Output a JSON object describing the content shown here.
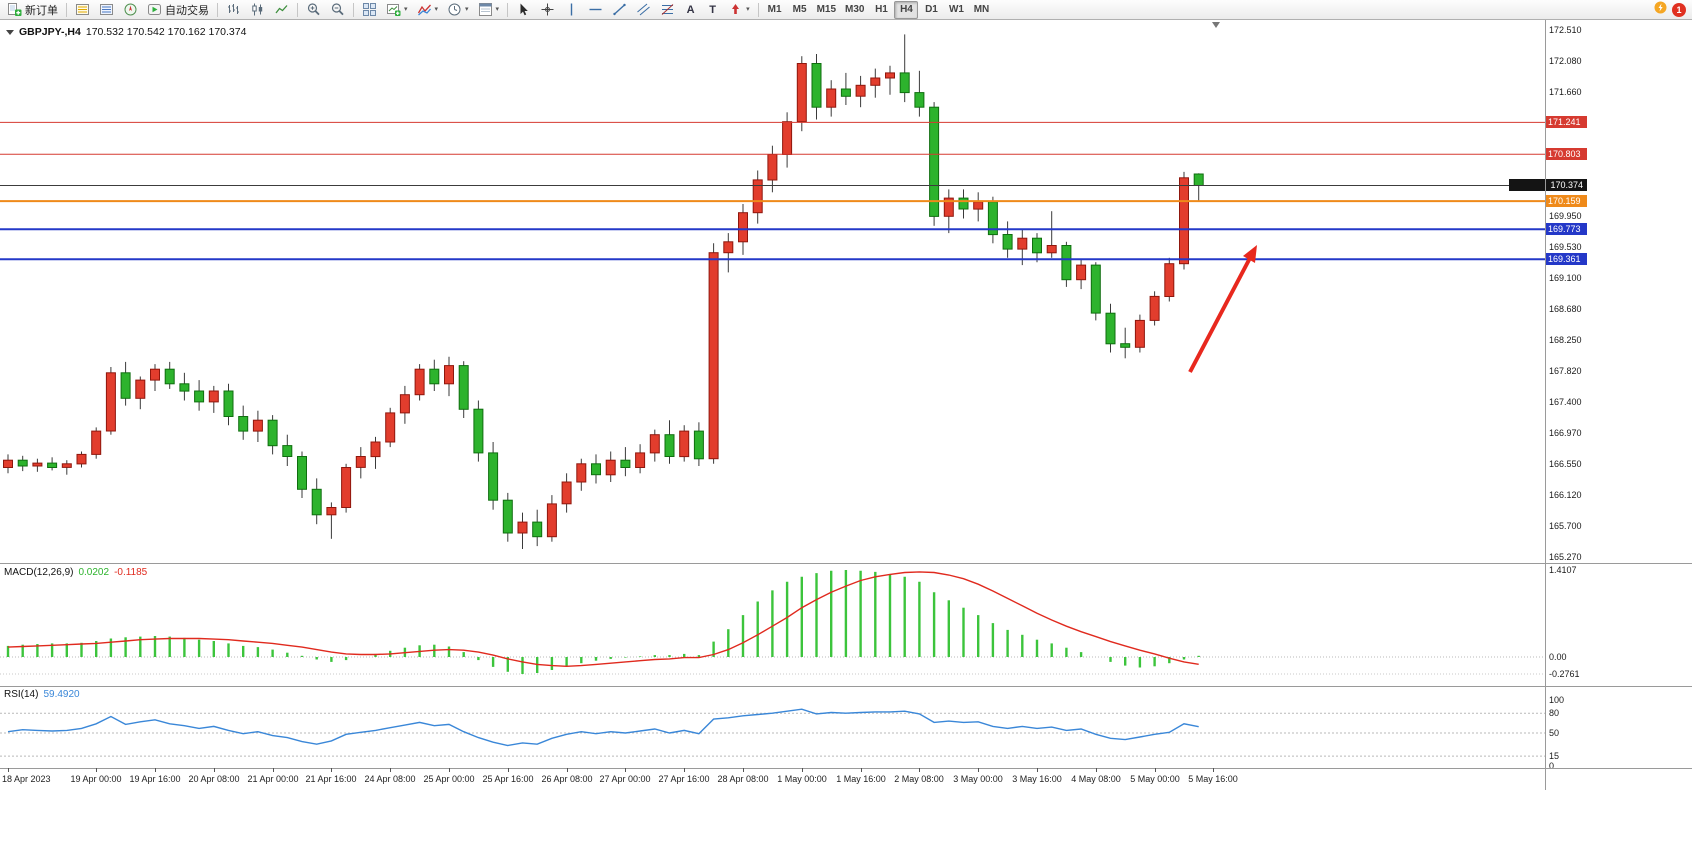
{
  "app": {
    "toolbar": {
      "new_order_label": "新订单",
      "autotrading_label": "自动交易",
      "timeframes": [
        "M1",
        "M5",
        "M15",
        "M30",
        "H1",
        "H4",
        "D1",
        "W1",
        "MN"
      ],
      "active_timeframe": "H4",
      "notification_count": "1"
    }
  },
  "icons": {
    "dropdown": "▾",
    "text_tool": "A",
    "label_tool": "T"
  },
  "chart_data": {
    "type": "candlestick",
    "symbol": "GBPJPY",
    "timeframe": "H4",
    "title": "GBPJPY-,H4",
    "ohlc_text": "170.532 170.542 170.162 170.374",
    "ohlc_current": {
      "open": "170.532",
      "high": "170.542",
      "low": "170.162",
      "close": "170.374"
    },
    "price_axis": {
      "max": 172.51,
      "min": 165.27,
      "labels": [
        "172.510",
        "172.080",
        "171.660",
        "169.950",
        "169.530",
        "169.100",
        "168.680",
        "168.250",
        "167.820",
        "167.400",
        "166.970",
        "166.550",
        "166.120",
        "165.700",
        "165.270"
      ]
    },
    "colors": {
      "bull": "#e23d2d",
      "bull_border": "#8f170d",
      "bear": "#2db32d",
      "bear_border": "#0f6e0f",
      "wick": "#3a3a3a"
    },
    "candles": [
      [
        166.5,
        166.68,
        166.42,
        166.6
      ],
      [
        166.6,
        166.66,
        166.45,
        166.52
      ],
      [
        166.52,
        166.62,
        166.44,
        166.56
      ],
      [
        166.56,
        166.64,
        166.46,
        166.5
      ],
      [
        166.5,
        166.6,
        166.4,
        166.55
      ],
      [
        166.55,
        166.72,
        166.5,
        166.68
      ],
      [
        166.68,
        167.05,
        166.62,
        167.0
      ],
      [
        167.0,
        167.88,
        166.95,
        167.8
      ],
      [
        167.8,
        167.95,
        167.35,
        167.45
      ],
      [
        167.45,
        167.75,
        167.3,
        167.7
      ],
      [
        167.7,
        167.92,
        167.55,
        167.85
      ],
      [
        167.85,
        167.95,
        167.58,
        167.65
      ],
      [
        167.65,
        167.8,
        167.42,
        167.55
      ],
      [
        167.55,
        167.7,
        167.28,
        167.4
      ],
      [
        167.4,
        167.62,
        167.25,
        167.55
      ],
      [
        167.55,
        167.65,
        167.08,
        167.2
      ],
      [
        167.2,
        167.35,
        166.88,
        167.0
      ],
      [
        167.0,
        167.28,
        166.85,
        167.15
      ],
      [
        167.15,
        167.22,
        166.68,
        166.8
      ],
      [
        166.8,
        166.95,
        166.52,
        166.65
      ],
      [
        166.65,
        166.72,
        166.08,
        166.2
      ],
      [
        166.2,
        166.35,
        165.72,
        165.85
      ],
      [
        165.85,
        166.02,
        165.52,
        165.95
      ],
      [
        165.95,
        166.55,
        165.88,
        166.5
      ],
      [
        166.5,
        166.78,
        166.35,
        166.65
      ],
      [
        166.65,
        166.92,
        166.48,
        166.85
      ],
      [
        166.85,
        167.32,
        166.78,
        167.25
      ],
      [
        167.25,
        167.62,
        167.1,
        167.5
      ],
      [
        167.5,
        167.92,
        167.42,
        167.85
      ],
      [
        167.85,
        167.98,
        167.55,
        167.65
      ],
      [
        167.65,
        168.02,
        167.48,
        167.9
      ],
      [
        167.9,
        167.96,
        167.18,
        167.3
      ],
      [
        167.3,
        167.42,
        166.58,
        166.7
      ],
      [
        166.7,
        166.85,
        165.92,
        166.05
      ],
      [
        166.05,
        166.15,
        165.48,
        165.6
      ],
      [
        165.6,
        165.88,
        165.38,
        165.75
      ],
      [
        165.75,
        165.92,
        165.42,
        165.55
      ],
      [
        165.55,
        166.12,
        165.48,
        166.0
      ],
      [
        166.0,
        166.42,
        165.88,
        166.3
      ],
      [
        166.3,
        166.62,
        166.18,
        166.55
      ],
      [
        166.55,
        166.68,
        166.28,
        166.4
      ],
      [
        166.4,
        166.72,
        166.3,
        166.6
      ],
      [
        166.6,
        166.78,
        166.38,
        166.5
      ],
      [
        166.5,
        166.82,
        166.42,
        166.7
      ],
      [
        166.7,
        167.02,
        166.58,
        166.95
      ],
      [
        166.95,
        167.15,
        166.55,
        166.65
      ],
      [
        166.65,
        167.08,
        166.58,
        167.0
      ],
      [
        167.0,
        167.12,
        166.52,
        166.62
      ],
      [
        166.62,
        169.58,
        166.55,
        169.45
      ],
      [
        169.45,
        169.72,
        169.18,
        169.6
      ],
      [
        169.6,
        170.12,
        169.42,
        170.0
      ],
      [
        170.0,
        170.58,
        169.85,
        170.45
      ],
      [
        170.45,
        170.92,
        170.28,
        170.8
      ],
      [
        170.8,
        171.38,
        170.62,
        171.25
      ],
      [
        171.25,
        172.15,
        171.12,
        172.05
      ],
      [
        172.05,
        172.18,
        171.28,
        171.45
      ],
      [
        171.45,
        171.82,
        171.32,
        171.7
      ],
      [
        171.7,
        171.92,
        171.48,
        171.6
      ],
      [
        171.6,
        171.88,
        171.45,
        171.75
      ],
      [
        171.75,
        171.98,
        171.58,
        171.85
      ],
      [
        171.85,
        172.02,
        171.62,
        171.92
      ],
      [
        171.92,
        172.45,
        171.52,
        171.65
      ],
      [
        171.65,
        171.95,
        171.32,
        171.45
      ],
      [
        171.45,
        171.52,
        169.82,
        169.95
      ],
      [
        169.95,
        170.32,
        169.72,
        170.2
      ],
      [
        170.2,
        170.32,
        169.92,
        170.05
      ],
      [
        170.05,
        170.28,
        169.88,
        170.15
      ],
      [
        170.15,
        170.22,
        169.58,
        169.7
      ],
      [
        169.7,
        169.88,
        169.38,
        169.5
      ],
      [
        169.5,
        169.78,
        169.28,
        169.65
      ],
      [
        169.65,
        169.72,
        169.32,
        169.45
      ],
      [
        169.45,
        170.02,
        169.38,
        169.55
      ],
      [
        169.55,
        169.6,
        168.98,
        169.08
      ],
      [
        169.08,
        169.35,
        168.95,
        169.28
      ],
      [
        169.28,
        169.32,
        168.52,
        168.62
      ],
      [
        168.62,
        168.75,
        168.08,
        168.2
      ],
      [
        168.2,
        168.42,
        168.0,
        168.15
      ],
      [
        168.15,
        168.6,
        168.08,
        168.52
      ],
      [
        168.52,
        168.92,
        168.45,
        168.85
      ],
      [
        168.85,
        169.38,
        168.78,
        169.3
      ],
      [
        169.3,
        170.56,
        169.22,
        170.48
      ],
      [
        170.532,
        170.542,
        170.162,
        170.374
      ]
    ],
    "hlines": [
      {
        "price": 171.241,
        "color": "#d63a30",
        "width": 1
      },
      {
        "price": 170.803,
        "color": "#d63a30",
        "width": 1
      },
      {
        "price": 170.374,
        "color": "#3c3c3c",
        "width": 1
      },
      {
        "price": 170.159,
        "color": "#ef8a1a",
        "width": 2
      },
      {
        "price": 169.773,
        "color": "#2438c8",
        "width": 2
      },
      {
        "price": 169.361,
        "color": "#2438c8",
        "width": 2
      }
    ],
    "price_tags": [
      {
        "price": 171.241,
        "label": "171.241",
        "bg": "#d63a30",
        "wide": false
      },
      {
        "price": 170.803,
        "label": "170.803",
        "bg": "#d63a30",
        "wide": false
      },
      {
        "price": 170.374,
        "label": "170.374",
        "bg": "#141414",
        "wide": true
      },
      {
        "price": 170.159,
        "label": "170.159",
        "bg": "#ef8a1a",
        "wide": false
      },
      {
        "price": 169.773,
        "label": "169.773",
        "bg": "#2438c8",
        "wide": false
      },
      {
        "price": 169.361,
        "label": "169.361",
        "bg": "#2438c8",
        "wide": false
      }
    ],
    "annotation_arrow": {
      "color": "#e8281e"
    },
    "time_labels": [
      {
        "text": "18 Apr 2023",
        "bar": 0
      },
      {
        "text": "19 Apr 00:00",
        "bar": 6
      },
      {
        "text": "19 Apr 16:00",
        "bar": 10
      },
      {
        "text": "20 Apr 08:00",
        "bar": 14
      },
      {
        "text": "21 Apr 00:00",
        "bar": 18
      },
      {
        "text": "21 Apr 16:00",
        "bar": 22
      },
      {
        "text": "24 Apr 08:00",
        "bar": 26
      },
      {
        "text": "25 Apr 00:00",
        "bar": 30
      },
      {
        "text": "25 Apr 16:00",
        "bar": 34
      },
      {
        "text": "26 Apr 08:00",
        "bar": 38
      },
      {
        "text": "27 Apr 00:00",
        "bar": 42
      },
      {
        "text": "27 Apr 16:00",
        "bar": 46
      },
      {
        "text": "28 Apr 08:00",
        "bar": 50
      },
      {
        "text": "1 May 00:00",
        "bar": 54
      },
      {
        "text": "1 May 16:00",
        "bar": 58
      },
      {
        "text": "2 May 08:00",
        "bar": 62
      },
      {
        "text": "3 May 00:00",
        "bar": 66
      },
      {
        "text": "3 May 16:00",
        "bar": 70
      },
      {
        "text": "4 May 08:00",
        "bar": 74
      },
      {
        "text": "5 May 00:00",
        "bar": 78
      },
      {
        "text": "5 May 16:00",
        "bar": 82
      }
    ],
    "indicators": {
      "macd": {
        "label": "MACD(12,26,9)",
        "value_main": "0.0202",
        "value_signal": "-0.1185",
        "axis_labels": [
          "1.4107",
          "0.00",
          "-0.2761"
        ],
        "axis_max": 1.4107,
        "axis_min": -0.2761,
        "histogram_color": "#3cc43c",
        "signal_color": "#e02a1e",
        "histogram": [
          0.18,
          0.2,
          0.21,
          0.22,
          0.22,
          0.23,
          0.26,
          0.3,
          0.32,
          0.33,
          0.34,
          0.33,
          0.31,
          0.28,
          0.26,
          0.22,
          0.18,
          0.16,
          0.12,
          0.07,
          0.02,
          -0.04,
          -0.08,
          -0.05,
          0.0,
          0.05,
          0.1,
          0.15,
          0.19,
          0.2,
          0.17,
          0.08,
          -0.05,
          -0.16,
          -0.24,
          -0.2761,
          -0.26,
          -0.21,
          -0.15,
          -0.1,
          -0.06,
          -0.03,
          -0.01,
          0.01,
          0.03,
          0.03,
          0.05,
          0.03,
          0.25,
          0.45,
          0.68,
          0.9,
          1.08,
          1.22,
          1.3,
          1.36,
          1.4,
          1.4107,
          1.4,
          1.38,
          1.34,
          1.3,
          1.22,
          1.05,
          0.92,
          0.8,
          0.68,
          0.55,
          0.44,
          0.36,
          0.28,
          0.22,
          0.15,
          0.08,
          0.0,
          -0.08,
          -0.14,
          -0.17,
          -0.15,
          -0.1,
          -0.04,
          0.0202
        ],
        "signal": [
          0.16,
          0.17,
          0.18,
          0.19,
          0.2,
          0.21,
          0.22,
          0.24,
          0.26,
          0.28,
          0.29,
          0.3,
          0.3,
          0.3,
          0.29,
          0.28,
          0.26,
          0.24,
          0.22,
          0.19,
          0.16,
          0.12,
          0.08,
          0.05,
          0.04,
          0.04,
          0.05,
          0.07,
          0.09,
          0.11,
          0.12,
          0.11,
          0.08,
          0.03,
          -0.03,
          -0.08,
          -0.12,
          -0.14,
          -0.15,
          -0.14,
          -0.12,
          -0.1,
          -0.08,
          -0.06,
          -0.04,
          -0.03,
          -0.01,
          -0.01,
          0.04,
          0.12,
          0.23,
          0.36,
          0.5,
          0.64,
          0.8,
          0.93,
          1.05,
          1.15,
          1.24,
          1.3,
          1.34,
          1.37,
          1.38,
          1.37,
          1.33,
          1.27,
          1.18,
          1.07,
          0.95,
          0.83,
          0.71,
          0.6,
          0.5,
          0.41,
          0.33,
          0.25,
          0.18,
          0.11,
          0.05,
          -0.02,
          -0.08,
          -0.1185
        ]
      },
      "rsi": {
        "label": "RSI(14)",
        "value": "59.4920",
        "levels": [
          100,
          80,
          50,
          15,
          0
        ],
        "line_color": "#3a87d8",
        "series": [
          52,
          55,
          54,
          53,
          54,
          57,
          64,
          75,
          63,
          67,
          70,
          64,
          61,
          57,
          60,
          54,
          49,
          52,
          46,
          43,
          37,
          33,
          38,
          48,
          51,
          54,
          58,
          62,
          66,
          61,
          63,
          52,
          43,
          36,
          31,
          35,
          33,
          42,
          48,
          52,
          49,
          52,
          50,
          53,
          56,
          50,
          54,
          49,
          71,
          73,
          76,
          78,
          80,
          83,
          86,
          79,
          81,
          80,
          81,
          82,
          82,
          83,
          79,
          66,
          68,
          66,
          67,
          60,
          57,
          60,
          57,
          59,
          54,
          56,
          48,
          42,
          40,
          44,
          48,
          51,
          64,
          59.49
        ]
      }
    }
  }
}
